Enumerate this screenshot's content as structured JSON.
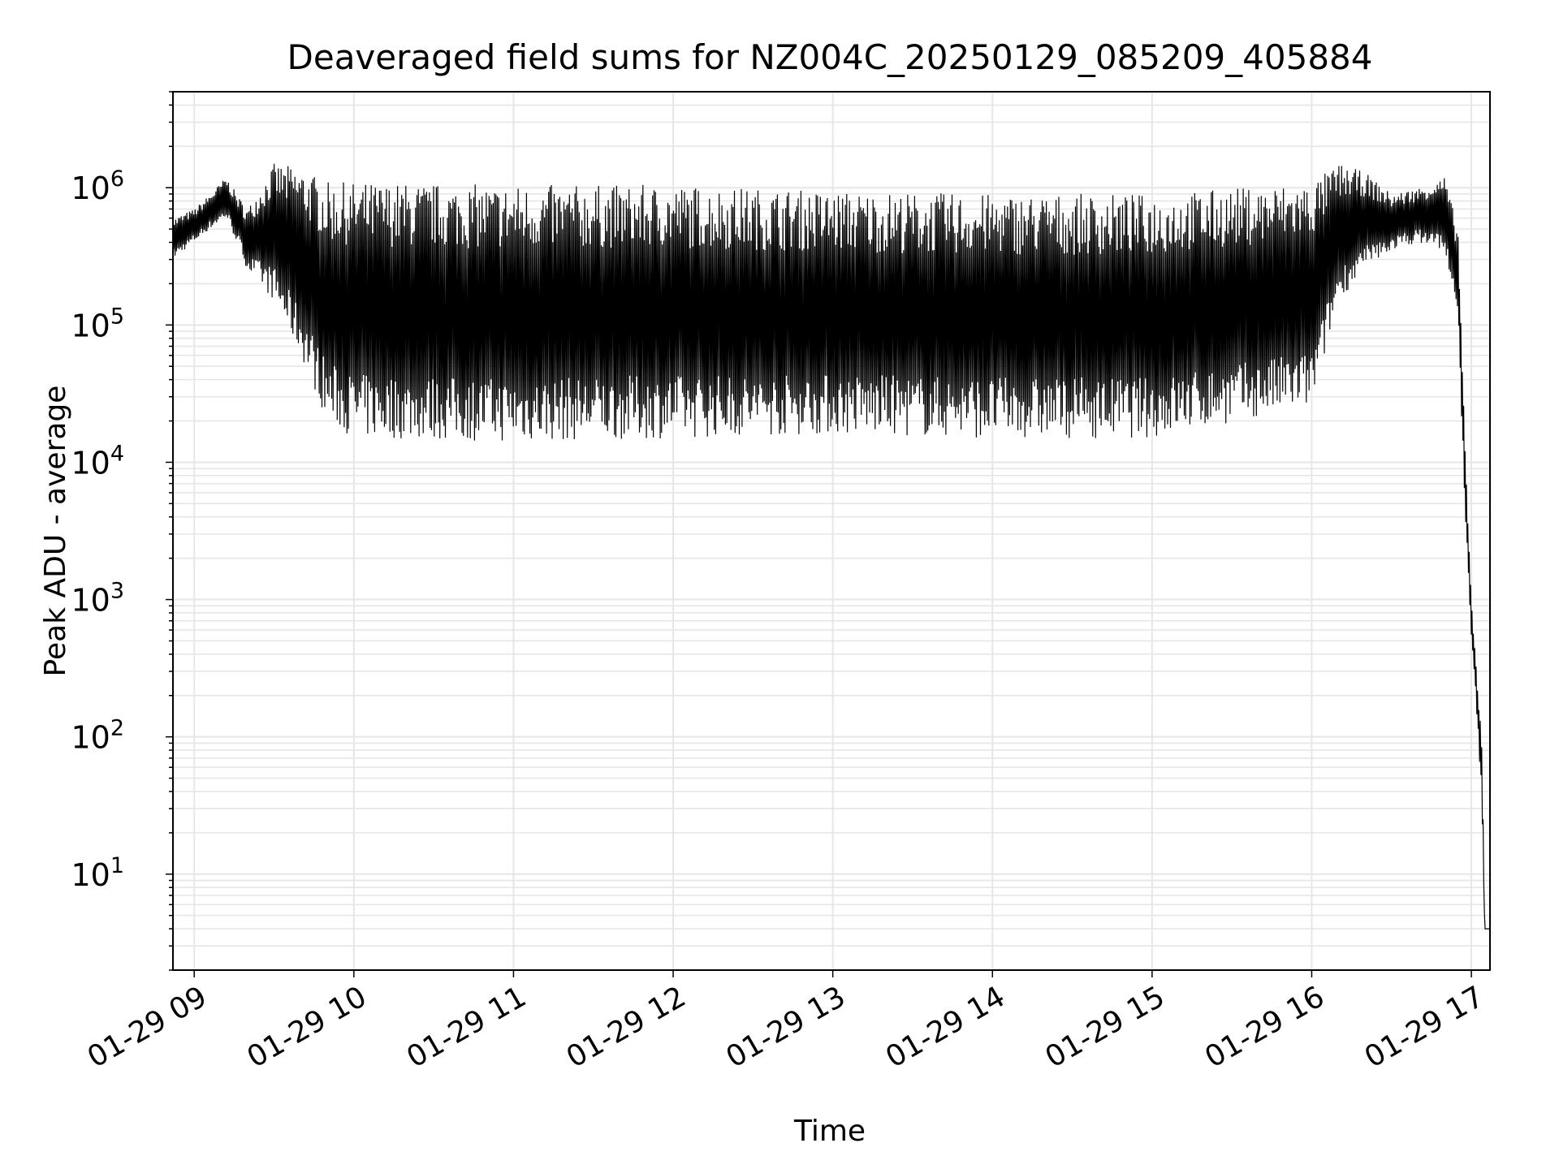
{
  "chart_data": {
    "type": "line",
    "title": "Deaveraged field sums for NZ004C_20250129_085209_405884",
    "xlabel": "Time",
    "ylabel": "Peak ADU - average",
    "yscale": "log",
    "ylim": [
      2,
      5000000
    ],
    "xlim": [
      "01-29 08:52",
      "01-29 17:07"
    ],
    "grid": true,
    "line_color": "#000000",
    "grid_color": "#e6e6e6",
    "x_ticks": [
      "01-29 09",
      "01-29 10",
      "01-29 11",
      "01-29 12",
      "01-29 13",
      "01-29 14",
      "01-29 15",
      "01-29 16",
      "01-29 17"
    ],
    "y_ticks": [
      {
        "base": "10",
        "exp": "1",
        "value": 10
      },
      {
        "base": "10",
        "exp": "2",
        "value": 100
      },
      {
        "base": "10",
        "exp": "3",
        "value": 1000
      },
      {
        "base": "10",
        "exp": "4",
        "value": 10000
      },
      {
        "base": "10",
        "exp": "5",
        "value": 100000
      },
      {
        "base": "10",
        "exp": "6",
        "value": 1000000
      }
    ],
    "series": [
      {
        "x": [
          "01-29 08:52",
          "01-29 09:00",
          "01-29 09:06",
          "01-29 09:12",
          "01-29 09:16",
          "01-29 09:20",
          "01-29 09:30",
          "01-29 09:40",
          "01-29 09:50",
          "01-29 10:00",
          "01-29 11:00",
          "01-29 12:00",
          "01-29 13:00",
          "01-29 14:00",
          "01-29 15:00",
          "01-29 16:00",
          "01-29 16:10",
          "01-29 16:20",
          "01-29 16:30",
          "01-29 16:40",
          "01-29 16:50",
          "01-29 16:55",
          "01-29 16:58",
          "01-29 17:00",
          "01-29 17:02",
          "01-29 17:04",
          "01-29 17:05",
          "01-29 17:07"
        ],
        "peaks": [
          600000,
          700000,
          900000,
          1200000,
          900000,
          700000,
          1500000,
          1400000,
          1100000,
          1100000,
          1050000,
          1050000,
          950000,
          900000,
          900000,
          1100000,
          1500000,
          1300000,
          900000,
          1000000,
          1200000,
          500000,
          8000,
          1000,
          300,
          100,
          4,
          4
        ],
        "troughs": [
          300000,
          400000,
          500000,
          600000,
          400000,
          250000,
          150000,
          60000,
          20000,
          15000,
          14000,
          15000,
          16000,
          15000,
          15000,
          25000,
          150000,
          250000,
          350000,
          400000,
          350000,
          100000,
          3000,
          500,
          150,
          30,
          4,
          4
        ]
      }
    ]
  }
}
